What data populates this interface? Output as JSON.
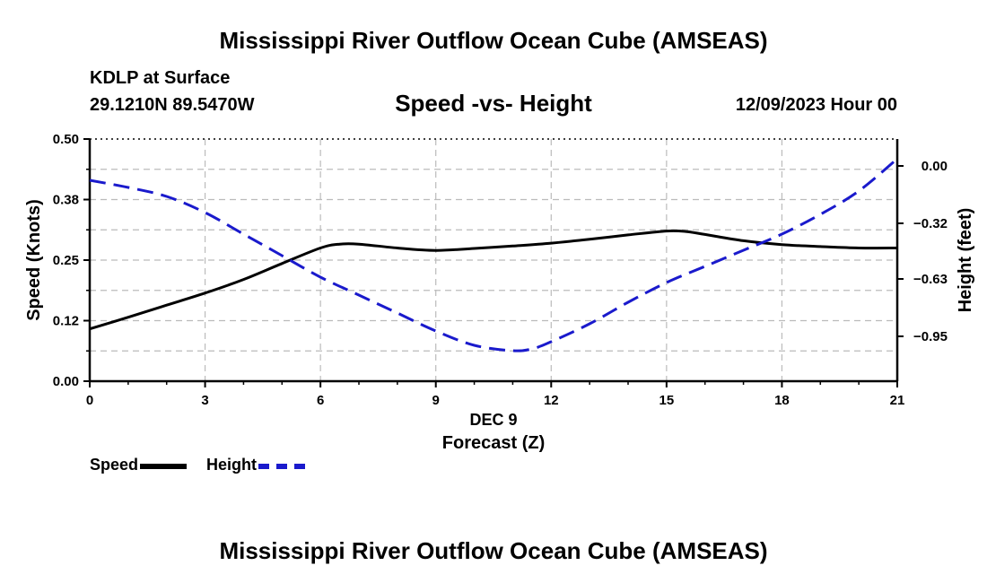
{
  "header": {
    "title": "Mississippi River Outflow Ocean Cube (AMSEAS)",
    "footer_title": "Mississippi River Outflow Ocean Cube (AMSEAS)",
    "station": "KDLP at Surface",
    "coords": "29.1210N  89.5470W",
    "date": "12/09/2023 Hour 00"
  },
  "colors": {
    "speed": "#000000",
    "height": "#1a1acc",
    "grid": "#bbbbbb"
  },
  "legend": {
    "speed_label": "Speed",
    "height_label": "Height"
  },
  "chart_data": {
    "type": "line",
    "title": "Speed -vs- Height",
    "xlabel_top": "DEC 9",
    "xlabel": "Forecast (Z)",
    "ylabel": "Speed (Knots)",
    "y2label": "Height (feet)",
    "xlim": [
      0,
      21
    ],
    "x_ticks": [
      0,
      3,
      6,
      9,
      12,
      15,
      18,
      21
    ],
    "ylim": [
      0,
      0.5
    ],
    "y_ticks": [
      0.0,
      0.125,
      0.25,
      0.375,
      0.5
    ],
    "y_tick_labels": [
      "0.00",
      "0.12",
      "0.25",
      "0.38",
      "0.50"
    ],
    "y2lim": [
      -1.2,
      0.15
    ],
    "y2_ticks": [
      0.0,
      -0.32,
      -0.63,
      -0.95
    ],
    "y2_tick_labels": [
      "0.00",
      "−0.32",
      "−0.63",
      "−0.95"
    ],
    "series": [
      {
        "name": "Speed",
        "axis": "left",
        "style": "solid",
        "x": [
          0,
          1,
          2,
          3,
          4,
          5,
          6,
          6.5,
          7,
          8,
          9,
          10,
          11,
          12,
          13,
          14,
          15,
          15.5,
          16,
          17,
          18,
          19,
          20,
          21
        ],
        "values": [
          0.108,
          0.132,
          0.157,
          0.182,
          0.21,
          0.243,
          0.275,
          0.283,
          0.283,
          0.275,
          0.27,
          0.274,
          0.279,
          0.285,
          0.293,
          0.302,
          0.31,
          0.309,
          0.303,
          0.29,
          0.282,
          0.278,
          0.275,
          0.275
        ]
      },
      {
        "name": "Height",
        "axis": "right",
        "style": "dashed",
        "x": [
          0,
          1,
          2,
          3,
          4,
          5,
          6,
          7,
          8,
          9,
          10,
          11,
          11.5,
          12,
          13,
          14,
          15,
          16,
          17,
          18,
          19,
          20,
          21
        ],
        "values": [
          -0.08,
          -0.12,
          -0.17,
          -0.26,
          -0.38,
          -0.5,
          -0.62,
          -0.72,
          -0.82,
          -0.92,
          -1.0,
          -1.03,
          -1.02,
          -0.98,
          -0.88,
          -0.76,
          -0.65,
          -0.56,
          -0.47,
          -0.38,
          -0.27,
          -0.14,
          0.04
        ]
      }
    ]
  }
}
